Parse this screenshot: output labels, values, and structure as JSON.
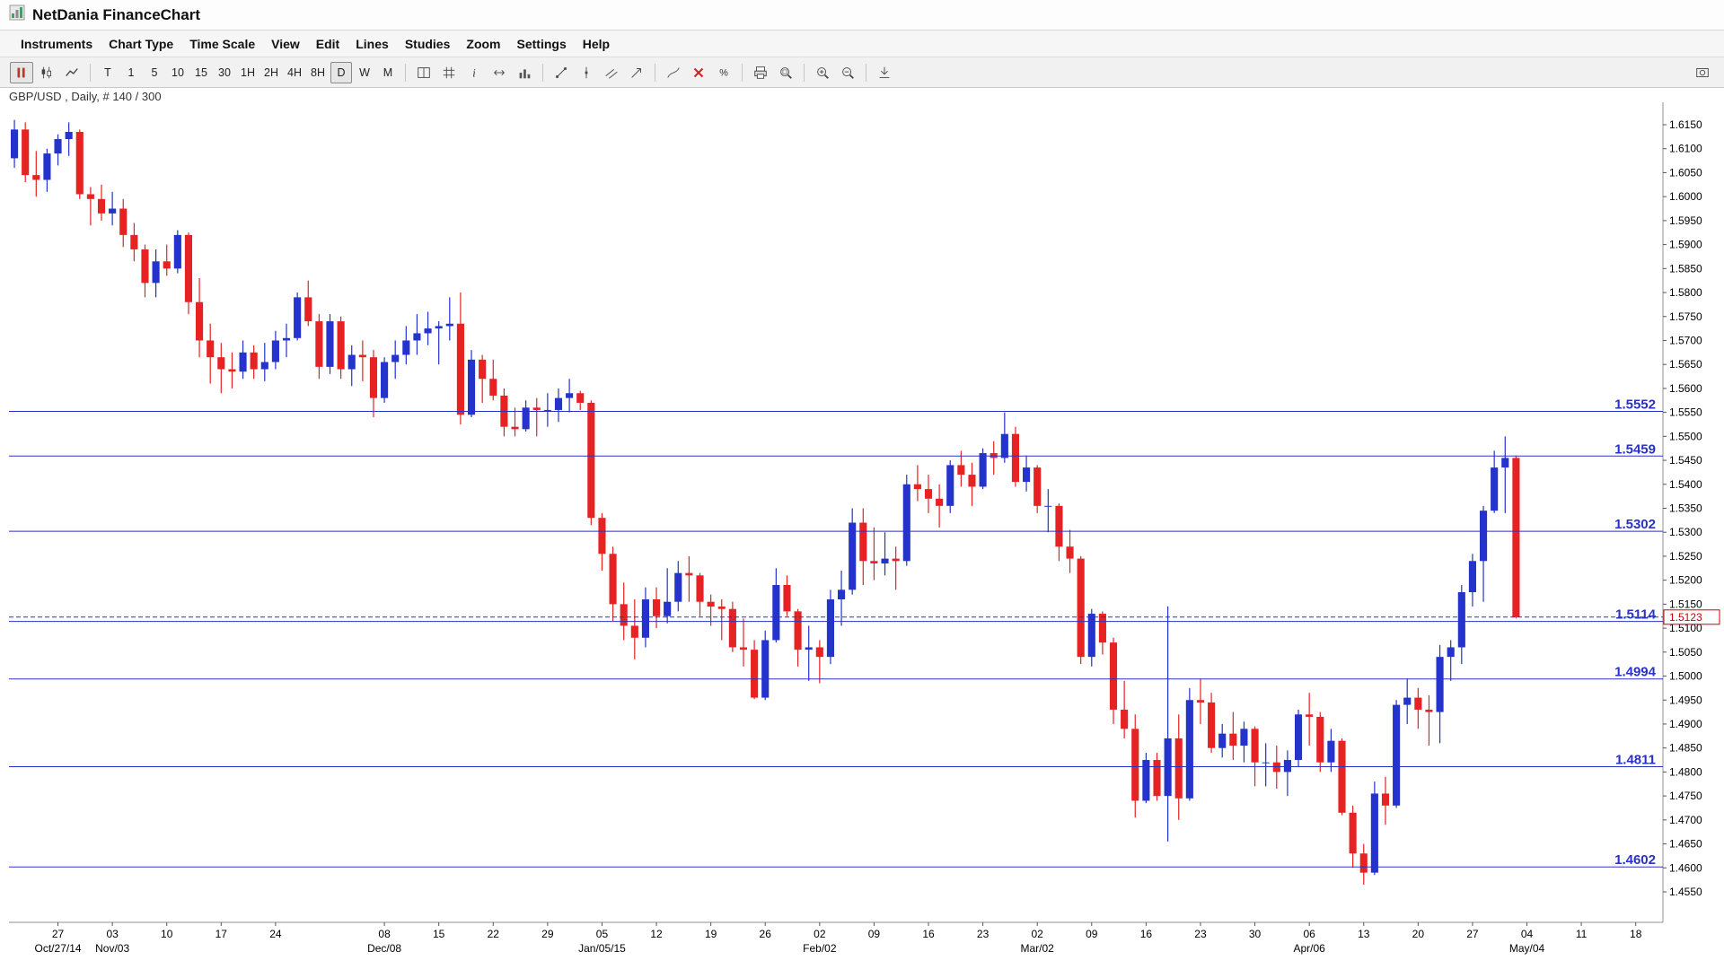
{
  "window": {
    "title": "NetDania FinanceChart"
  },
  "menu_bar": {
    "items": [
      "Instruments",
      "Chart Type",
      "Time Scale",
      "View",
      "Edit",
      "Lines",
      "Studies",
      "Zoom",
      "Settings",
      "Help"
    ]
  },
  "toolbar": {
    "groups": [
      {
        "buttons": [
          {
            "icon": "tick-bars-icon",
            "active": true
          },
          {
            "icon": "candlestick-icon"
          },
          {
            "icon": "line-chart-icon"
          }
        ]
      },
      {
        "buttons": [
          {
            "label": "T"
          },
          {
            "label": "1"
          },
          {
            "label": "5"
          },
          {
            "label": "10"
          },
          {
            "label": "15"
          },
          {
            "label": "30"
          },
          {
            "label": "1H"
          },
          {
            "label": "2H"
          },
          {
            "label": "4H"
          },
          {
            "label": "8H"
          },
          {
            "label": "D",
            "active": true
          },
          {
            "label": "W"
          },
          {
            "label": "M"
          }
        ]
      },
      {
        "buttons": [
          {
            "icon": "layout-icon"
          },
          {
            "icon": "grid-icon"
          },
          {
            "icon": "info-icon"
          },
          {
            "icon": "pan-horizontal-icon"
          },
          {
            "icon": "volume-icon"
          }
        ]
      },
      {
        "buttons": [
          {
            "icon": "trendline-icon"
          },
          {
            "icon": "vertical-line-icon"
          },
          {
            "icon": "parallel-channel-icon"
          },
          {
            "icon": "arrow-icon"
          }
        ]
      },
      {
        "buttons": [
          {
            "icon": "freehand-line-icon"
          },
          {
            "icon": "delete-drawings-icon"
          },
          {
            "icon": "percent-labels-icon"
          }
        ]
      },
      {
        "buttons": [
          {
            "icon": "print-icon"
          },
          {
            "icon": "zoom-area-icon"
          }
        ]
      },
      {
        "buttons": [
          {
            "icon": "zoom-in-icon"
          },
          {
            "icon": "zoom-out-icon"
          }
        ]
      },
      {
        "buttons": [
          {
            "icon": "scale-to-fit-icon"
          }
        ]
      }
    ],
    "right_buttons": [
      {
        "icon": "snapshot-icon"
      }
    ]
  },
  "chart": {
    "legend": "GBP/USD , Daily, # 140 / 300"
  },
  "chart_data": {
    "type": "candlestick",
    "instrument": "GBP/USD",
    "timeframe": "Daily",
    "bars_label": "# 140 / 300",
    "up_color": "#2433cc",
    "down_color": "#e62222",
    "level_color": "#2a32c4",
    "current_price": 1.5123,
    "current_price_label_color": "#cc0000",
    "levels": [
      1.5552,
      1.5459,
      1.5302,
      1.5114,
      1.4994,
      1.4811,
      1.4602
    ],
    "y_axis": {
      "min": 1.455,
      "max": 1.615,
      "step": 0.005
    },
    "x_axis": {
      "total_slots": 152,
      "week_ticks": [
        {
          "label": "27",
          "slot": 4
        },
        {
          "label": "03",
          "slot": 9
        },
        {
          "label": "10",
          "slot": 14
        },
        {
          "label": "17",
          "slot": 19
        },
        {
          "label": "24",
          "slot": 24
        },
        {
          "label": "08",
          "slot": 34
        },
        {
          "label": "15",
          "slot": 39
        },
        {
          "label": "22",
          "slot": 44
        },
        {
          "label": "29",
          "slot": 49
        },
        {
          "label": "05",
          "slot": 54
        },
        {
          "label": "12",
          "slot": 59
        },
        {
          "label": "19",
          "slot": 64
        },
        {
          "label": "26",
          "slot": 69
        },
        {
          "label": "02",
          "slot": 74
        },
        {
          "label": "09",
          "slot": 79
        },
        {
          "label": "16",
          "slot": 84
        },
        {
          "label": "23",
          "slot": 89
        },
        {
          "label": "02",
          "slot": 94
        },
        {
          "label": "09",
          "slot": 99
        },
        {
          "label": "16",
          "slot": 104
        },
        {
          "label": "23",
          "slot": 109
        },
        {
          "label": "30",
          "slot": 114
        },
        {
          "label": "06",
          "slot": 119
        },
        {
          "label": "13",
          "slot": 124
        },
        {
          "label": "20",
          "slot": 129
        },
        {
          "label": "27",
          "slot": 134
        },
        {
          "label": "04",
          "slot": 139
        },
        {
          "label": "11",
          "slot": 144
        },
        {
          "label": "18",
          "slot": 149
        }
      ],
      "month_labels": [
        {
          "label": "Oct/27/14",
          "slot": 4
        },
        {
          "label": "Nov/03",
          "slot": 9
        },
        {
          "label": "Dec/08",
          "slot": 34
        },
        {
          "label": "Jan/05/15",
          "slot": 54
        },
        {
          "label": "Feb/02",
          "slot": 74
        },
        {
          "label": "Mar/02",
          "slot": 94
        },
        {
          "label": "Apr/06",
          "slot": 119
        },
        {
          "label": "May/04",
          "slot": 139
        }
      ]
    },
    "candles": [
      [
        1.608,
        1.616,
        1.606,
        1.614
      ],
      [
        1.614,
        1.6155,
        1.603,
        1.6045
      ],
      [
        1.6045,
        1.6095,
        1.6,
        1.6035
      ],
      [
        1.6035,
        1.61,
        1.601,
        1.609
      ],
      [
        1.609,
        1.613,
        1.6065,
        1.612
      ],
      [
        1.612,
        1.6155,
        1.6085,
        1.6135
      ],
      [
        1.6135,
        1.614,
        1.5995,
        1.6005
      ],
      [
        1.6005,
        1.602,
        1.594,
        1.5995
      ],
      [
        1.5995,
        1.6025,
        1.595,
        1.5965
      ],
      [
        1.5965,
        1.601,
        1.594,
        1.5975
      ],
      [
        1.5975,
        1.5995,
        1.5895,
        1.592
      ],
      [
        1.592,
        1.5945,
        1.5865,
        1.589
      ],
      [
        1.589,
        1.59,
        1.579,
        1.582
      ],
      [
        1.582,
        1.589,
        1.579,
        1.5865
      ],
      [
        1.5865,
        1.59,
        1.5835,
        1.585
      ],
      [
        1.585,
        1.593,
        1.584,
        1.592
      ],
      [
        1.592,
        1.5925,
        1.5755,
        1.578
      ],
      [
        1.578,
        1.583,
        1.5665,
        1.57
      ],
      [
        1.57,
        1.5735,
        1.561,
        1.5665
      ],
      [
        1.5665,
        1.5695,
        1.559,
        1.564
      ],
      [
        1.564,
        1.5675,
        1.56,
        1.5635
      ],
      [
        1.5635,
        1.57,
        1.562,
        1.5675
      ],
      [
        1.5675,
        1.569,
        1.562,
        1.564
      ],
      [
        1.564,
        1.5695,
        1.5615,
        1.5655
      ],
      [
        1.5655,
        1.572,
        1.564,
        1.57
      ],
      [
        1.57,
        1.5735,
        1.5665,
        1.5705
      ],
      [
        1.5705,
        1.58,
        1.57,
        1.579
      ],
      [
        1.579,
        1.5825,
        1.573,
        1.574
      ],
      [
        1.574,
        1.5755,
        1.562,
        1.5645
      ],
      [
        1.5645,
        1.5755,
        1.563,
        1.574
      ],
      [
        1.574,
        1.575,
        1.562,
        1.564
      ],
      [
        1.564,
        1.569,
        1.5605,
        1.567
      ],
      [
        1.567,
        1.57,
        1.5615,
        1.5665
      ],
      [
        1.5665,
        1.568,
        1.554,
        1.558
      ],
      [
        1.558,
        1.5665,
        1.557,
        1.5655
      ],
      [
        1.5655,
        1.57,
        1.562,
        1.567
      ],
      [
        1.567,
        1.573,
        1.565,
        1.57
      ],
      [
        1.57,
        1.5755,
        1.567,
        1.5715
      ],
      [
        1.5715,
        1.576,
        1.569,
        1.5725
      ],
      [
        1.5725,
        1.574,
        1.565,
        1.573
      ],
      [
        1.573,
        1.579,
        1.57,
        1.5735
      ],
      [
        1.5735,
        1.58,
        1.5525,
        1.5545
      ],
      [
        1.5545,
        1.568,
        1.554,
        1.566
      ],
      [
        1.566,
        1.567,
        1.557,
        1.562
      ],
      [
        1.562,
        1.566,
        1.5575,
        1.5585
      ],
      [
        1.5585,
        1.56,
        1.55,
        1.552
      ],
      [
        1.552,
        1.556,
        1.55,
        1.5515
      ],
      [
        1.5515,
        1.5575,
        1.551,
        1.556
      ],
      [
        1.556,
        1.558,
        1.55,
        1.5555
      ],
      [
        1.5555,
        1.559,
        1.552,
        1.5555
      ],
      [
        1.5555,
        1.56,
        1.553,
        1.558
      ],
      [
        1.558,
        1.562,
        1.555,
        1.559
      ],
      [
        1.559,
        1.5595,
        1.5555,
        1.557
      ],
      [
        1.557,
        1.5575,
        1.5315,
        1.533
      ],
      [
        1.533,
        1.534,
        1.522,
        1.5255
      ],
      [
        1.5255,
        1.527,
        1.5115,
        1.515
      ],
      [
        1.515,
        1.5195,
        1.5075,
        1.5105
      ],
      [
        1.5105,
        1.516,
        1.5035,
        1.508
      ],
      [
        1.508,
        1.5185,
        1.506,
        1.516
      ],
      [
        1.516,
        1.5185,
        1.51,
        1.5125
      ],
      [
        1.5125,
        1.5225,
        1.511,
        1.5155
      ],
      [
        1.5155,
        1.524,
        1.5135,
        1.5215
      ],
      [
        1.5215,
        1.525,
        1.5155,
        1.521
      ],
      [
        1.521,
        1.5215,
        1.5125,
        1.5155
      ],
      [
        1.5155,
        1.517,
        1.5105,
        1.5145
      ],
      [
        1.5145,
        1.516,
        1.5075,
        1.514
      ],
      [
        1.514,
        1.5155,
        1.505,
        1.506
      ],
      [
        1.506,
        1.512,
        1.502,
        1.5055
      ],
      [
        1.5055,
        1.5075,
        1.4952,
        1.4955
      ],
      [
        1.4955,
        1.5095,
        1.495,
        1.5075
      ],
      [
        1.5075,
        1.5225,
        1.507,
        1.519
      ],
      [
        1.519,
        1.521,
        1.5125,
        1.5135
      ],
      [
        1.5135,
        1.514,
        1.502,
        1.5055
      ],
      [
        1.5055,
        1.5105,
        1.499,
        1.506
      ],
      [
        1.506,
        1.5075,
        1.4985,
        1.504
      ],
      [
        1.504,
        1.518,
        1.5025,
        1.516
      ],
      [
        1.516,
        1.522,
        1.5105,
        1.518
      ],
      [
        1.518,
        1.535,
        1.517,
        1.532
      ],
      [
        1.532,
        1.535,
        1.519,
        1.524
      ],
      [
        1.524,
        1.531,
        1.52,
        1.5235
      ],
      [
        1.5235,
        1.53,
        1.521,
        1.5245
      ],
      [
        1.5245,
        1.527,
        1.518,
        1.524
      ],
      [
        1.524,
        1.542,
        1.523,
        1.54
      ],
      [
        1.54,
        1.544,
        1.5365,
        1.539
      ],
      [
        1.539,
        1.542,
        1.534,
        1.537
      ],
      [
        1.537,
        1.54,
        1.531,
        1.5355
      ],
      [
        1.5355,
        1.545,
        1.534,
        1.544
      ],
      [
        1.544,
        1.547,
        1.5395,
        1.542
      ],
      [
        1.542,
        1.5445,
        1.5355,
        1.5395
      ],
      [
        1.5395,
        1.5475,
        1.539,
        1.5465
      ],
      [
        1.5465,
        1.549,
        1.542,
        1.5455
      ],
      [
        1.5455,
        1.555,
        1.5445,
        1.5505
      ],
      [
        1.5505,
        1.552,
        1.5395,
        1.5405
      ],
      [
        1.5405,
        1.546,
        1.5385,
        1.5435
      ],
      [
        1.5435,
        1.544,
        1.534,
        1.5355
      ],
      [
        1.5355,
        1.539,
        1.53,
        1.5355
      ],
      [
        1.5355,
        1.536,
        1.524,
        1.527
      ],
      [
        1.527,
        1.5305,
        1.5215,
        1.5245
      ],
      [
        1.5245,
        1.525,
        1.5025,
        1.504
      ],
      [
        1.504,
        1.514,
        1.502,
        1.513
      ],
      [
        1.513,
        1.5135,
        1.5045,
        1.507
      ],
      [
        1.507,
        1.508,
        1.49,
        1.493
      ],
      [
        1.493,
        1.499,
        1.487,
        1.489
      ],
      [
        1.489,
        1.492,
        1.4705,
        1.474
      ],
      [
        1.474,
        1.484,
        1.4735,
        1.4825
      ],
      [
        1.4825,
        1.484,
        1.474,
        1.475
      ],
      [
        1.475,
        1.5145,
        1.4655,
        1.487
      ],
      [
        1.487,
        1.492,
        1.47,
        1.4745
      ],
      [
        1.4745,
        1.4975,
        1.474,
        1.495
      ],
      [
        1.495,
        1.4995,
        1.49,
        1.4945
      ],
      [
        1.4945,
        1.4965,
        1.484,
        1.485
      ],
      [
        1.485,
        1.49,
        1.483,
        1.488
      ],
      [
        1.488,
        1.4925,
        1.4825,
        1.4855
      ],
      [
        1.4855,
        1.4905,
        1.482,
        1.489
      ],
      [
        1.489,
        1.4895,
        1.477,
        1.482
      ],
      [
        1.482,
        1.486,
        1.477,
        1.482
      ],
      [
        1.482,
        1.4855,
        1.4765,
        1.48
      ],
      [
        1.48,
        1.4845,
        1.475,
        1.4825
      ],
      [
        1.4825,
        1.493,
        1.481,
        1.492
      ],
      [
        1.492,
        1.4965,
        1.4855,
        1.4915
      ],
      [
        1.4915,
        1.4925,
        1.48,
        1.482
      ],
      [
        1.482,
        1.489,
        1.48,
        1.4865
      ],
      [
        1.4865,
        1.487,
        1.471,
        1.4715
      ],
      [
        1.4715,
        1.473,
        1.46,
        1.463
      ],
      [
        1.463,
        1.465,
        1.4565,
        1.459
      ],
      [
        1.459,
        1.478,
        1.4585,
        1.4755
      ],
      [
        1.4755,
        1.479,
        1.469,
        1.473
      ],
      [
        1.473,
        1.495,
        1.4725,
        1.494
      ],
      [
        1.494,
        1.4995,
        1.49,
        1.4955
      ],
      [
        1.4955,
        1.4975,
        1.489,
        1.493
      ],
      [
        1.493,
        1.496,
        1.4855,
        1.4925
      ],
      [
        1.4925,
        1.5065,
        1.486,
        1.504
      ],
      [
        1.504,
        1.5075,
        1.499,
        1.506
      ],
      [
        1.506,
        1.519,
        1.5025,
        1.5175
      ],
      [
        1.5175,
        1.5255,
        1.5145,
        1.524
      ],
      [
        1.524,
        1.5355,
        1.5155,
        1.5345
      ],
      [
        1.5345,
        1.547,
        1.534,
        1.5435
      ],
      [
        1.5435,
        1.55,
        1.534,
        1.5455
      ],
      [
        1.5455,
        1.546,
        1.512,
        1.5123
      ]
    ]
  }
}
